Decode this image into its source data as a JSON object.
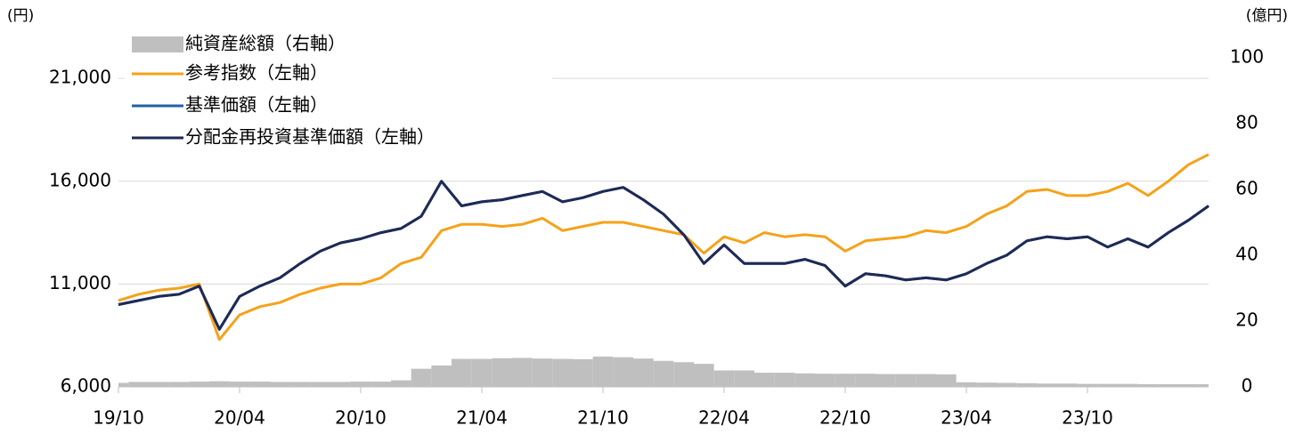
{
  "chart_data": {
    "type": "line",
    "y_axis_label": "(円)",
    "y2_axis_label": "(億円)",
    "categories": [
      "19/10",
      null,
      null,
      null,
      null,
      null,
      "20/04",
      null,
      null,
      null,
      null,
      null,
      "20/10",
      null,
      null,
      null,
      null,
      null,
      "21/04",
      null,
      null,
      null,
      null,
      null,
      "21/10",
      null,
      null,
      null,
      null,
      null,
      "22/04",
      null,
      null,
      null,
      null,
      null,
      "22/10",
      null,
      null,
      null,
      null,
      null,
      "23/04",
      null,
      null,
      null,
      null,
      null,
      "23/10",
      null,
      null,
      null,
      null,
      null,
      null
    ],
    "ylim": [
      6000,
      22000
    ],
    "yticks": [
      {
        "value": 6000,
        "label": "6,000"
      },
      {
        "value": 11000,
        "label": "11,000"
      },
      {
        "value": 16000,
        "label": "16,000"
      },
      {
        "value": 21000,
        "label": "21,000"
      }
    ],
    "y2lim": [
      0,
      100
    ],
    "y2ticks": [
      0,
      20,
      40,
      60,
      80,
      100
    ],
    "grid": true,
    "series": [
      {
        "name": "純資産総額（右軸）",
        "type": "area",
        "axis": "y2",
        "color": "#bfbfbf",
        "values": [
          1.2,
          1.5,
          1.5,
          1.5,
          1.6,
          1.7,
          1.6,
          1.6,
          1.5,
          1.5,
          1.5,
          1.5,
          1.6,
          1.6,
          2.0,
          5.5,
          6.5,
          8.5,
          8.5,
          8.7,
          8.8,
          8.6,
          8.5,
          8.4,
          9.2,
          9.0,
          8.6,
          7.9,
          7.5,
          7.0,
          5.0,
          5.0,
          4.3,
          4.3,
          4.1,
          4.0,
          4.0,
          4.0,
          3.9,
          3.9,
          3.9,
          3.8,
          1.4,
          1.3,
          1.2,
          1.1,
          1.0,
          1.0,
          0.9,
          0.9,
          0.9,
          0.8,
          0.8,
          0.8,
          0.8
        ]
      },
      {
        "name": "参考指数（左軸）",
        "color": "#f5a21a",
        "values": [
          10200,
          10500,
          10700,
          10800,
          11000,
          8300,
          9500,
          9900,
          10100,
          10500,
          10800,
          11000,
          11000,
          11300,
          12000,
          12300,
          13600,
          13900,
          13900,
          13800,
          13900,
          14200,
          13600,
          13800,
          14000,
          14000,
          13800,
          13600,
          13400,
          12500,
          13300,
          13000,
          13500,
          13300,
          13400,
          13300,
          12600,
          13100,
          13200,
          13300,
          13600,
          13500,
          13800,
          14400,
          14800,
          15500,
          15600,
          15300,
          15300,
          15500,
          15900,
          15300,
          16000,
          16800,
          17300
        ]
      },
      {
        "name": "基準価額（左軸）",
        "color": "#1f5fa8",
        "values": [
          10000,
          10200,
          10400,
          10500,
          10900,
          8800,
          10400,
          10900,
          11300,
          12000,
          12600,
          13000,
          13200,
          13500,
          13700,
          14300,
          16000,
          14800,
          15000,
          15100,
          15300,
          15500,
          15000,
          15200,
          15500,
          15700,
          15100,
          14400,
          13400,
          12000,
          12900,
          12000,
          12000,
          12000,
          12200,
          11900,
          10900,
          11500,
          11400,
          11200,
          11300,
          11200,
          11500,
          12000,
          12400,
          13100,
          13300,
          13200,
          13300,
          12800,
          13200,
          12800,
          13500,
          14100,
          14800
        ]
      },
      {
        "name": "分配金再投資基準価額（左軸）",
        "color": "#1f2a55",
        "values": [
          10000,
          10200,
          10400,
          10500,
          10900,
          8800,
          10400,
          10900,
          11300,
          12000,
          12600,
          13000,
          13200,
          13500,
          13700,
          14300,
          16000,
          14800,
          15000,
          15100,
          15300,
          15500,
          15000,
          15200,
          15500,
          15700,
          15100,
          14400,
          13400,
          12000,
          12900,
          12000,
          12000,
          12000,
          12200,
          11900,
          10900,
          11500,
          11400,
          11200,
          11300,
          11200,
          11500,
          12000,
          12400,
          13100,
          13300,
          13200,
          13300,
          12800,
          13200,
          12800,
          13500,
          14100,
          14800
        ]
      }
    ]
  }
}
